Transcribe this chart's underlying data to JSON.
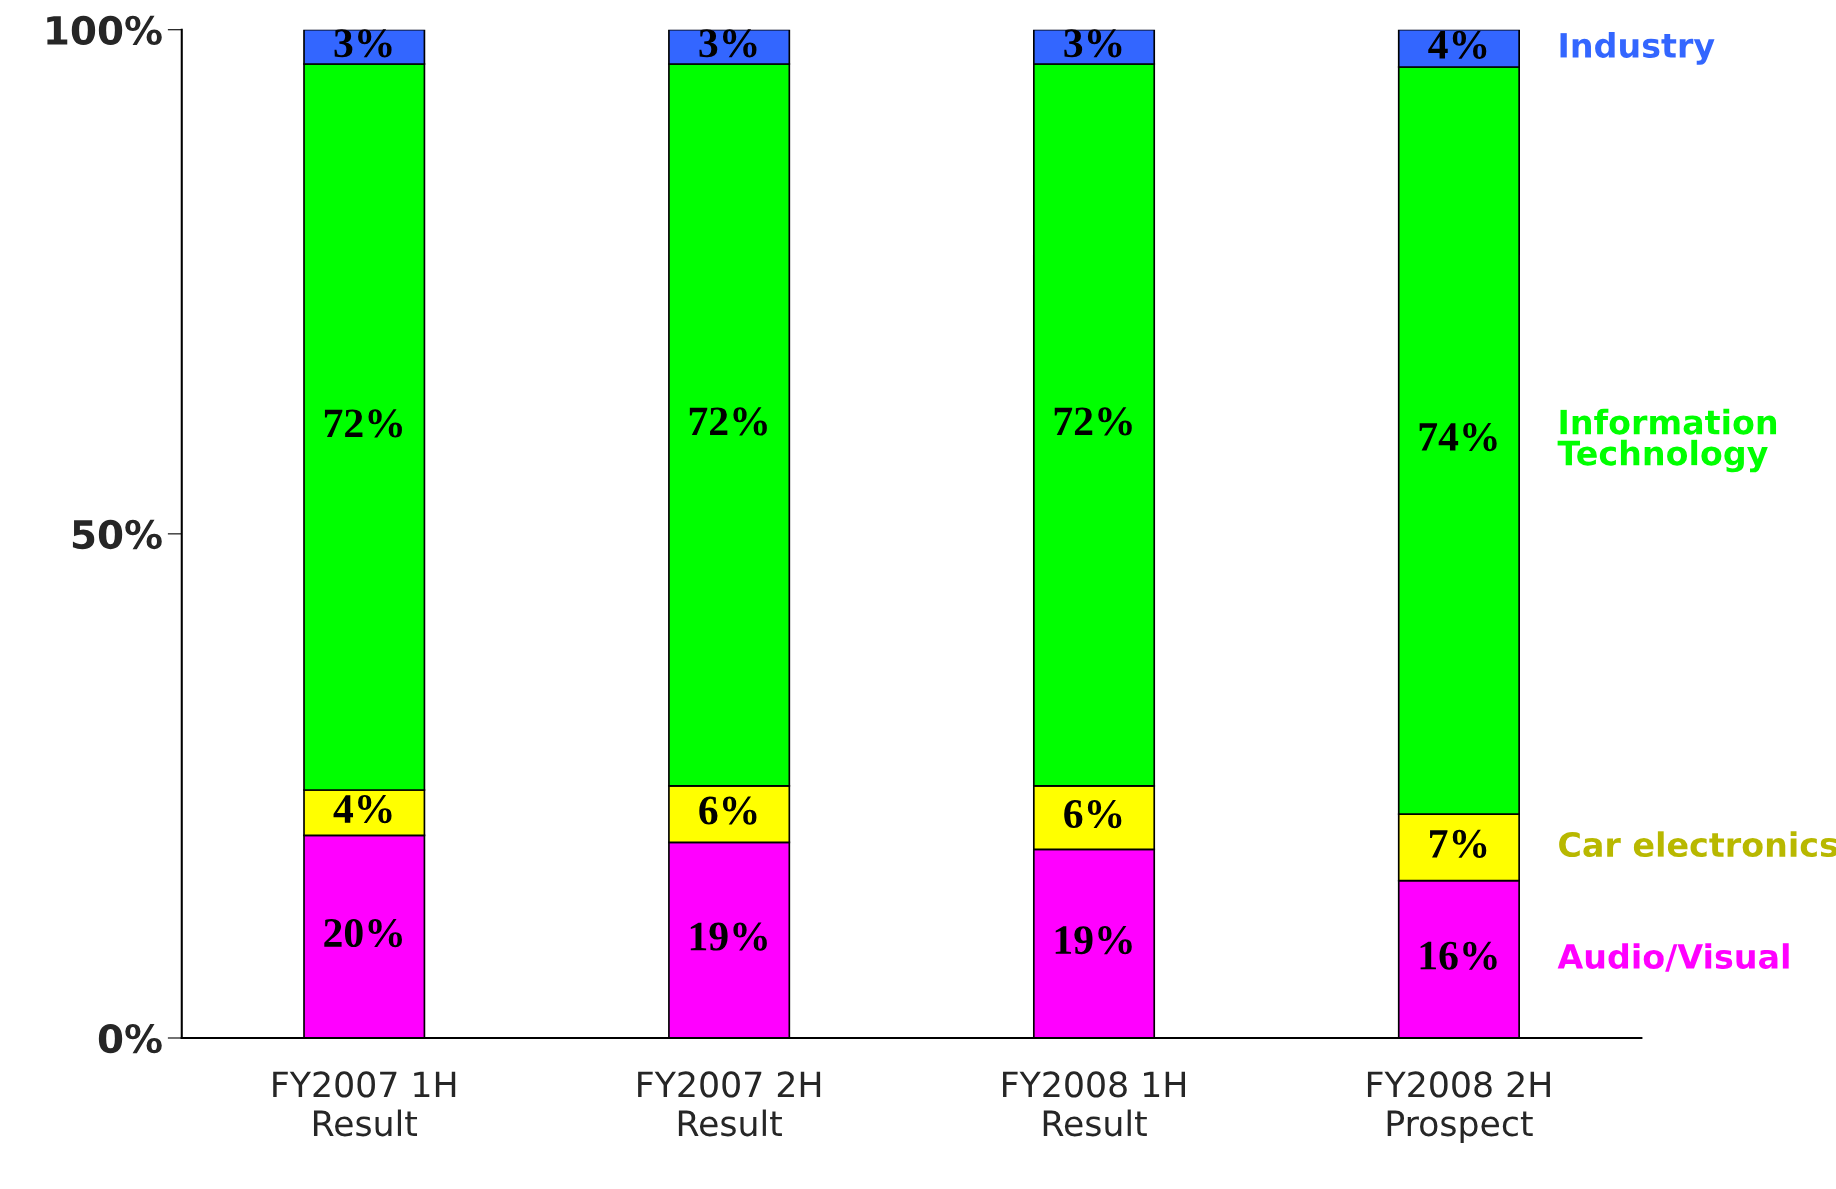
{
  "chart_data": {
    "type": "bar",
    "stacked": true,
    "categories": [
      "FY2007 1H\nResult",
      "FY2007 2H\nResult",
      "FY2008 1H\nResult",
      "FY2008 2H\nProspect"
    ],
    "series": [
      {
        "name": "Audio/Visual",
        "color": "#ff00ff",
        "values": [
          20.1,
          19.4,
          18.7,
          15.6
        ],
        "value_labels": [
          "20%",
          "19%",
          "19%",
          "16%"
        ]
      },
      {
        "name": "Car electronics",
        "color": "#ffff00",
        "values": [
          4.5,
          5.6,
          6.3,
          6.6
        ],
        "value_labels": [
          "4%",
          "6%",
          "6%",
          "7%"
        ]
      },
      {
        "name": "Information\nTechnology",
        "color": "#00ff00",
        "values": [
          72.0,
          71.6,
          71.6,
          74.1
        ],
        "value_labels": [
          "72%",
          "72%",
          "72%",
          "74%"
        ]
      },
      {
        "name": "Industry",
        "color": "#3366ff",
        "values": [
          3.4,
          3.4,
          3.4,
          3.7
        ],
        "value_labels": [
          "3%",
          "3%",
          "3%",
          "4%"
        ]
      }
    ],
    "ylim": [
      0,
      100
    ],
    "yticks": [
      {
        "value": 0,
        "label": "0%"
      },
      {
        "value": 50,
        "label": "50%"
      },
      {
        "value": 100,
        "label": "100%"
      }
    ],
    "grid": false,
    "legend": "right"
  }
}
